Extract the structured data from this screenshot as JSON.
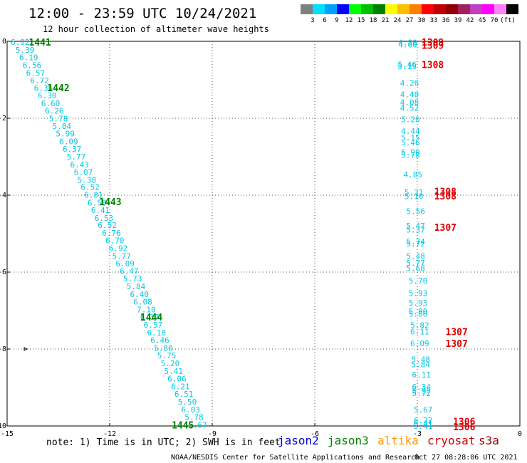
{
  "header": {
    "title": "12:00 - 23:59 UTC 10/24/2021",
    "subtitle": "12 hour collection of altimeter wave heights"
  },
  "colorbar": {
    "colors": [
      "#808080",
      "#00e0ff",
      "#00a0ff",
      "#0000ff",
      "#00ff00",
      "#00c000",
      "#008000",
      "#ffff00",
      "#ffc000",
      "#ff8000",
      "#ff0000",
      "#c00000",
      "#900000",
      "#a02060",
      "#c040c0",
      "#ff00ff",
      "#ff80ff",
      "#000000"
    ],
    "labels": [
      "3",
      "6",
      "9",
      "12",
      "15",
      "18",
      "21",
      "24",
      "27",
      "30",
      "33",
      "36",
      "39",
      "42",
      "45",
      "70",
      "(ft)"
    ]
  },
  "footer": {
    "note": "note: 1) Time is in UTC; 2) SWH is in feet",
    "credit": "NOAA/NESDIS Center for Satellite Applications and Research",
    "timestamp": "Oct 27 08:28:06 UTC 2021"
  },
  "chart_data": {
    "type": "scatter",
    "xlim": [
      -15,
      0
    ],
    "ylim": [
      -10,
      0
    ],
    "x_ticks": [
      "-15",
      "-12",
      "-9",
      "-6",
      "-3",
      "0"
    ],
    "y_ticks": [
      "0",
      "-2",
      "-4",
      "-6",
      "-8",
      "-10"
    ],
    "grid": true,
    "legend": {
      "position": "bottom",
      "entries": [
        {
          "name": "jason2",
          "color": "#0000cc"
        },
        {
          "name": "jason3",
          "color": "#008000"
        },
        {
          "name": "altika",
          "color": "#ff9900"
        },
        {
          "name": "cryosat",
          "color": "#cc0000"
        },
        {
          "name": "s3a",
          "color": "#990000"
        }
      ]
    },
    "series": [
      {
        "name": "jason3",
        "values": [
          {
            "x": -14.62,
            "y": -0.02,
            "v": "6.02"
          },
          {
            "x": -14.48,
            "y": -0.22,
            "v": "5.39"
          },
          {
            "x": -14.37,
            "y": -0.42,
            "v": "6.19"
          },
          {
            "x": -14.27,
            "y": -0.62,
            "v": "6.56"
          },
          {
            "x": -14.17,
            "y": -0.82,
            "v": "6.57"
          },
          {
            "x": -14.05,
            "y": -1.02,
            "v": "6.72"
          },
          {
            "x": -13.94,
            "y": -1.21,
            "v": "6.36"
          },
          {
            "x": -13.83,
            "y": -1.41,
            "v": "6.30"
          },
          {
            "x": -13.73,
            "y": -1.61,
            "v": "6.60"
          },
          {
            "x": -13.62,
            "y": -1.81,
            "v": "6.26"
          },
          {
            "x": -13.5,
            "y": -2.01,
            "v": "5.78"
          },
          {
            "x": -13.4,
            "y": -2.2,
            "v": "5.84"
          },
          {
            "x": -13.3,
            "y": -2.4,
            "v": "5.99"
          },
          {
            "x": -13.2,
            "y": -2.6,
            "v": "6.09"
          },
          {
            "x": -13.1,
            "y": -2.8,
            "v": "6.37"
          },
          {
            "x": -12.98,
            "y": -3.0,
            "v": "5.77"
          },
          {
            "x": -12.88,
            "y": -3.2,
            "v": "6.43"
          },
          {
            "x": -12.77,
            "y": -3.4,
            "v": "6.07"
          },
          {
            "x": -12.67,
            "y": -3.6,
            "v": "5.38"
          },
          {
            "x": -12.57,
            "y": -3.79,
            "v": "6.52"
          },
          {
            "x": -12.47,
            "y": -3.99,
            "v": "6.81"
          },
          {
            "x": -12.37,
            "y": -4.19,
            "v": "6.58"
          },
          {
            "x": -12.27,
            "y": -4.39,
            "v": "6.41"
          },
          {
            "x": -12.17,
            "y": -4.59,
            "v": "6.53"
          },
          {
            "x": -12.07,
            "y": -4.78,
            "v": "6.52"
          },
          {
            "x": -11.95,
            "y": -4.98,
            "v": "6.76"
          },
          {
            "x": -11.85,
            "y": -5.18,
            "v": "6.70"
          },
          {
            "x": -11.75,
            "y": -5.38,
            "v": "6.92"
          },
          {
            "x": -11.65,
            "y": -5.58,
            "v": "5.77"
          },
          {
            "x": -11.55,
            "y": -5.78,
            "v": "6.09"
          },
          {
            "x": -11.43,
            "y": -5.97,
            "v": "6.47"
          },
          {
            "x": -11.33,
            "y": -6.17,
            "v": "5.73"
          },
          {
            "x": -11.23,
            "y": -6.37,
            "v": "5.84"
          },
          {
            "x": -11.13,
            "y": -6.57,
            "v": "6.40"
          },
          {
            "x": -11.03,
            "y": -6.77,
            "v": "6.08"
          },
          {
            "x": -10.93,
            "y": -6.97,
            "v": "7.10"
          },
          {
            "x": -10.83,
            "y": -7.17,
            "v": "6.17"
          },
          {
            "x": -10.73,
            "y": -7.37,
            "v": "6.57"
          },
          {
            "x": -10.63,
            "y": -7.57,
            "v": "6.18"
          },
          {
            "x": -10.53,
            "y": -7.77,
            "v": "6.46"
          },
          {
            "x": -10.43,
            "y": -7.97,
            "v": "5.80"
          },
          {
            "x": -10.33,
            "y": -8.17,
            "v": "5.75"
          },
          {
            "x": -10.23,
            "y": -8.37,
            "v": "5.20"
          },
          {
            "x": -10.13,
            "y": -8.57,
            "v": "5.41"
          },
          {
            "x": -10.03,
            "y": -8.77,
            "v": "6.06"
          },
          {
            "x": -9.93,
            "y": -8.97,
            "v": "6.21"
          },
          {
            "x": -9.83,
            "y": -9.17,
            "v": "6.51"
          },
          {
            "x": -9.73,
            "y": -9.37,
            "v": "5.50"
          },
          {
            "x": -9.63,
            "y": -9.57,
            "v": "6.03"
          },
          {
            "x": -9.53,
            "y": -9.77,
            "v": "5.78"
          },
          {
            "x": -9.43,
            "y": -9.97,
            "v": "5.67"
          }
        ],
        "passes": [
          {
            "x": -14.04,
            "y": -0.02,
            "label": "1441"
          },
          {
            "x": -13.5,
            "y": -1.2,
            "label": "1442"
          },
          {
            "x": -11.98,
            "y": -4.17,
            "label": "1443"
          },
          {
            "x": -10.78,
            "y": -7.17,
            "label": "1444"
          },
          {
            "x": -9.86,
            "y": -9.97,
            "label": "1445"
          }
        ]
      },
      {
        "name": "cryosat",
        "values": [
          {
            "x": -3.28,
            "y": -0.03,
            "v": "4.80"
          },
          {
            "x": -3.28,
            "y": -0.08,
            "v": "4.60"
          },
          {
            "x": -3.3,
            "y": -0.6,
            "v": "5.46"
          },
          {
            "x": -3.3,
            "y": -0.65,
            "v": "5.15"
          },
          {
            "x": -3.23,
            "y": -1.08,
            "v": "4.26"
          },
          {
            "x": -3.23,
            "y": -1.38,
            "v": "4.40"
          },
          {
            "x": -3.23,
            "y": -1.58,
            "v": "4.08"
          },
          {
            "x": -3.23,
            "y": -1.73,
            "v": "4.52"
          },
          {
            "x": -3.2,
            "y": -2.03,
            "v": "5.20"
          },
          {
            "x": -3.2,
            "y": -2.33,
            "v": "4.44"
          },
          {
            "x": -3.2,
            "y": -2.5,
            "v": "5.15"
          },
          {
            "x": -3.2,
            "y": -2.63,
            "v": "5.46"
          },
          {
            "x": -3.2,
            "y": -2.88,
            "v": "5.90"
          },
          {
            "x": -3.2,
            "y": -2.95,
            "v": "5.78"
          },
          {
            "x": -3.13,
            "y": -3.46,
            "v": "4.85"
          },
          {
            "x": -3.1,
            "y": -3.93,
            "v": "5.31"
          },
          {
            "x": -3.1,
            "y": -4.03,
            "v": "5.10"
          },
          {
            "x": -3.05,
            "y": -4.42,
            "v": "5.56"
          },
          {
            "x": -3.05,
            "y": -4.8,
            "v": "5.47"
          },
          {
            "x": -3.05,
            "y": -4.9,
            "v": "5.37"
          },
          {
            "x": -3.05,
            "y": -5.2,
            "v": "5.74"
          },
          {
            "x": -3.05,
            "y": -5.26,
            "v": "5.72"
          },
          {
            "x": -3.05,
            "y": -5.58,
            "v": "5.48"
          },
          {
            "x": -3.05,
            "y": -5.76,
            "v": "5.77"
          },
          {
            "x": -3.05,
            "y": -5.9,
            "v": "5.68"
          },
          {
            "x": -2.98,
            "y": -6.22,
            "v": "5.70"
          },
          {
            "x": -2.98,
            "y": -6.55,
            "v": "5.93"
          },
          {
            "x": -2.98,
            "y": -6.8,
            "v": "5.93"
          },
          {
            "x": -2.98,
            "y": -7.02,
            "v": "5.90"
          },
          {
            "x": -2.98,
            "y": -7.08,
            "v": "5.86"
          },
          {
            "x": -2.93,
            "y": -7.38,
            "v": "5.82"
          },
          {
            "x": -2.93,
            "y": -7.55,
            "v": "6.11"
          },
          {
            "x": -2.93,
            "y": -7.85,
            "v": "6.09"
          },
          {
            "x": -2.9,
            "y": -8.27,
            "v": "5.48"
          },
          {
            "x": -2.9,
            "y": -8.4,
            "v": "5.84"
          },
          {
            "x": -2.88,
            "y": -8.67,
            "v": "6.11"
          },
          {
            "x": -2.88,
            "y": -8.98,
            "v": "6.34"
          },
          {
            "x": -2.88,
            "y": -9.08,
            "v": "5.90"
          },
          {
            "x": -2.88,
            "y": -9.15,
            "v": "5.72"
          },
          {
            "x": -2.83,
            "y": -9.57,
            "v": "5.67"
          },
          {
            "x": -2.83,
            "y": -9.85,
            "v": "6.22"
          },
          {
            "x": -2.83,
            "y": -9.93,
            "v": "6.41"
          },
          {
            "x": -2.83,
            "y": -10.0,
            "v": "5.41"
          }
        ],
        "passes": [
          {
            "x": -2.55,
            "y": -0.02,
            "label": "1309"
          },
          {
            "x": -2.55,
            "y": -0.1,
            "label": "1309"
          },
          {
            "x": -2.55,
            "y": -0.6,
            "label": "1308"
          },
          {
            "x": -2.18,
            "y": -3.9,
            "label": "1308"
          },
          {
            "x": -2.18,
            "y": -4.02,
            "label": "1308"
          },
          {
            "x": -2.18,
            "y": -4.83,
            "label": "1307"
          },
          {
            "x": -1.85,
            "y": -7.55,
            "label": "1307"
          },
          {
            "x": -1.85,
            "y": -7.85,
            "label": "1307"
          },
          {
            "x": -1.63,
            "y": -9.88,
            "label": "1306"
          },
          {
            "x": -1.63,
            "y": -10.02,
            "label": "1306"
          }
        ]
      }
    ]
  }
}
